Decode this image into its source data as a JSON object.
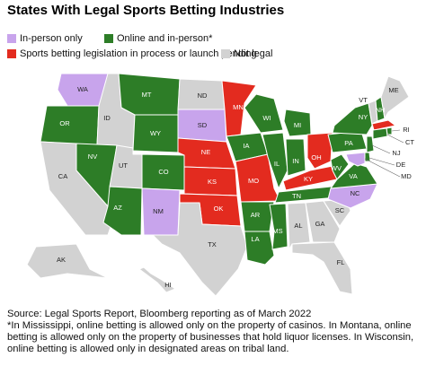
{
  "title": "States With Legal Sports Betting Industries",
  "legend": [
    {
      "label": "In-person only",
      "color": "#c8a4ec"
    },
    {
      "label": "Online and in-person*",
      "color": "#2d7d27"
    },
    {
      "label": "Sports betting legislation in process or launch pending",
      "color": "#e32b1f"
    },
    {
      "label": "Not legal",
      "color": "#d2d2d2"
    }
  ],
  "states": [
    {
      "label": "WA",
      "status": 0
    },
    {
      "label": "OR",
      "status": 1
    },
    {
      "label": "CA",
      "status": 3
    },
    {
      "label": "ID",
      "status": 3
    },
    {
      "label": "NV",
      "status": 1
    },
    {
      "label": "MT",
      "status": 1
    },
    {
      "label": "WY",
      "status": 1
    },
    {
      "label": "UT",
      "status": 3
    },
    {
      "label": "AZ",
      "status": 1
    },
    {
      "label": "CO",
      "status": 1
    },
    {
      "label": "NM",
      "status": 0
    },
    {
      "label": "ND",
      "status": 3
    },
    {
      "label": "SD",
      "status": 0
    },
    {
      "label": "NE",
      "status": 2
    },
    {
      "label": "KS",
      "status": 2
    },
    {
      "label": "OK",
      "status": 2
    },
    {
      "label": "TX",
      "status": 3
    },
    {
      "label": "MN",
      "status": 2
    },
    {
      "label": "IA",
      "status": 1
    },
    {
      "label": "MO",
      "status": 2
    },
    {
      "label": "AR",
      "status": 1
    },
    {
      "label": "LA",
      "status": 1
    },
    {
      "label": "WI",
      "status": 1
    },
    {
      "label": "IL",
      "status": 1
    },
    {
      "label": "MI",
      "status": 1
    },
    {
      "label": "IN",
      "status": 1
    },
    {
      "label": "OH",
      "status": 2
    },
    {
      "label": "KY",
      "status": 2
    },
    {
      "label": "TN",
      "status": 1
    },
    {
      "label": "MS",
      "status": 1
    },
    {
      "label": "AL",
      "status": 3
    },
    {
      "label": "GA",
      "status": 3
    },
    {
      "label": "FL",
      "status": 3
    },
    {
      "label": "SC",
      "status": 3
    },
    {
      "label": "NC",
      "status": 0
    },
    {
      "label": "VA",
      "status": 1
    },
    {
      "label": "WV",
      "status": 1
    },
    {
      "label": "PA",
      "status": 1
    },
    {
      "label": "NY",
      "status": 1
    },
    {
      "label": "VT",
      "status": 3
    },
    {
      "label": "NH",
      "status": 1
    },
    {
      "label": "ME",
      "status": 3
    },
    {
      "label": "MA",
      "status": 2
    },
    {
      "label": "RI",
      "status": 1
    },
    {
      "label": "CT",
      "status": 1
    },
    {
      "label": "NJ",
      "status": 1
    },
    {
      "label": "DE",
      "status": 1
    },
    {
      "label": "MD",
      "status": 0
    },
    {
      "label": "AK",
      "status": 3
    },
    {
      "label": "HI",
      "status": 3
    }
  ],
  "source": "Source: Legal Sports Report, Bloomberg reporting as of March 2022",
  "note": "*In Mississippi, online betting is allowed only on the property of casinos. In Montana, online betting is allowed only on the property of businesses that hold liquor licenses. In Wisconsin, online betting is allowed only in designated areas on tribal land."
}
